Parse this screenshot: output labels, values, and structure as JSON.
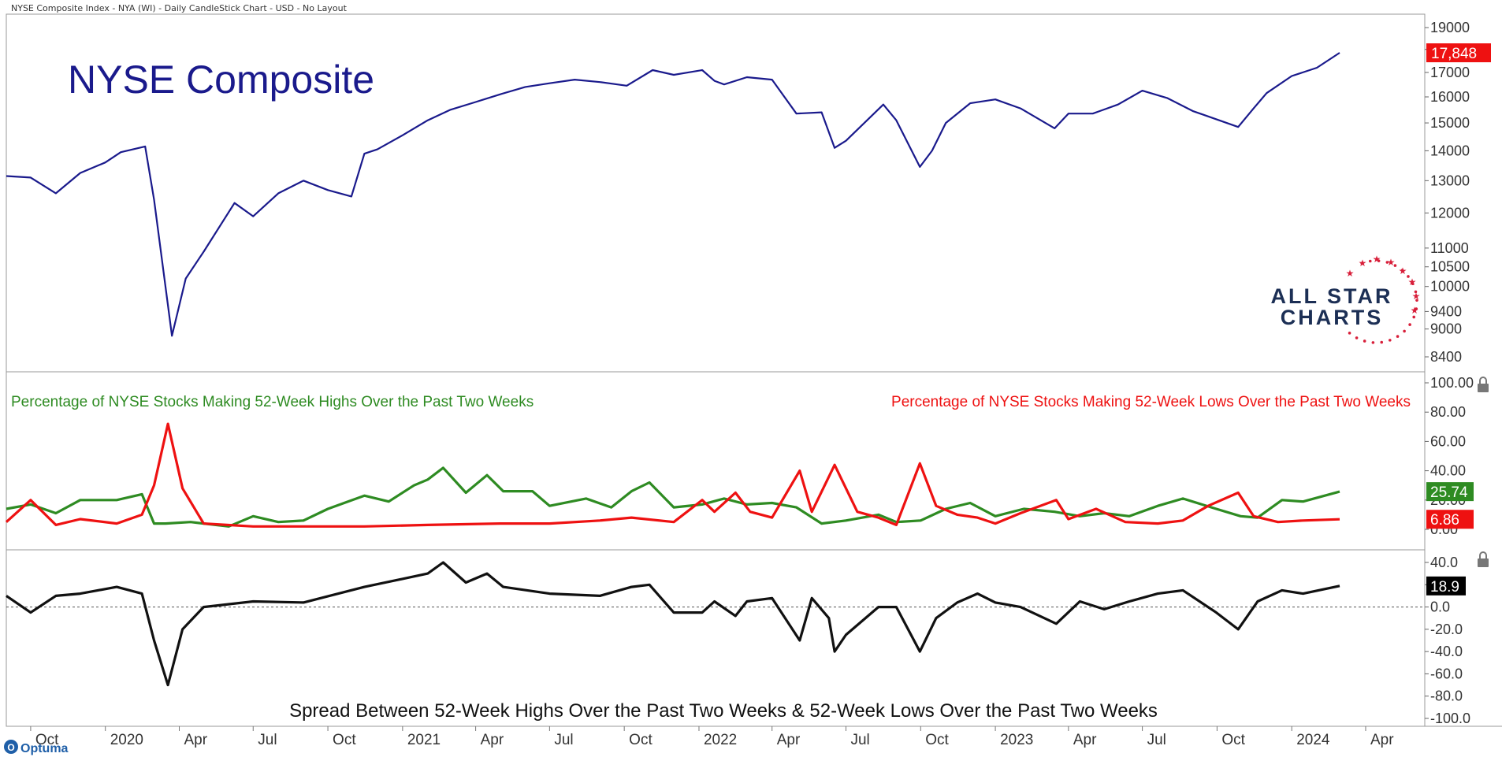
{
  "header": "NYSE Composite Index - NYA (WI) - Daily CandleStick Chart - USD - No Layout",
  "brand": {
    "line1": "ALL STAR",
    "line2": "CHARTS",
    "optuma": "Optuma",
    "optuma_letter": "O"
  },
  "colors": {
    "price": "#1a1a8c",
    "title": "#1a1a8c",
    "highs": "#2e8b22",
    "lows": "#ee1111",
    "spread": "#111111",
    "grid": "#bbbbbb",
    "brand_blue": "#1c2f55",
    "brand_red": "#d81f3a",
    "optuma": "#1f5fa8"
  },
  "chart_data": [
    {
      "type": "line",
      "title": "NYSE Composite",
      "scale": "log",
      "y_ticks": [
        "19000",
        "18000",
        "17000",
        "16000",
        "15000",
        "14000",
        "13000",
        "12000",
        "11000",
        "10500",
        "10000",
        "9400",
        "9000",
        "8400"
      ],
      "ylim": [
        8400,
        19000
      ],
      "last_value_label": "17,848",
      "x": [
        "2019-09-01",
        "2019-10-01",
        "2019-11-01",
        "2019-12-01",
        "2020-01-01",
        "2020-01-20",
        "2020-02-19",
        "2020-03-01",
        "2020-03-23",
        "2020-04-09",
        "2020-05-01",
        "2020-06-08",
        "2020-07-01",
        "2020-08-01",
        "2020-09-01",
        "2020-10-01",
        "2020-10-30",
        "2020-11-15",
        "2020-12-01",
        "2021-01-01",
        "2021-02-01",
        "2021-03-01",
        "2021-04-01",
        "2021-05-01",
        "2021-06-01",
        "2021-07-01",
        "2021-08-01",
        "2021-09-01",
        "2021-10-04",
        "2021-11-05",
        "2021-12-01",
        "2022-01-05",
        "2022-01-20",
        "2022-02-01",
        "2022-03-01",
        "2022-04-01",
        "2022-05-01",
        "2022-06-01",
        "2022-06-17",
        "2022-07-01",
        "2022-08-16",
        "2022-09-01",
        "2022-09-30",
        "2022-10-15",
        "2022-11-01",
        "2022-12-01",
        "2023-01-01",
        "2023-02-01",
        "2023-03-15",
        "2023-04-01",
        "2023-05-01",
        "2023-06-01",
        "2023-07-01",
        "2023-08-01",
        "2023-09-01",
        "2023-10-27",
        "2023-11-15",
        "2023-12-01",
        "2024-01-01",
        "2024-02-01",
        "2024-02-29"
      ],
      "values": [
        13150,
        13100,
        12600,
        13250,
        13600,
        13950,
        14150,
        12400,
        8850,
        10200,
        10900,
        12300,
        11900,
        12600,
        13000,
        12700,
        12500,
        13900,
        14050,
        14550,
        15100,
        15500,
        15800,
        16100,
        16400,
        16550,
        16700,
        16600,
        16450,
        17100,
        16900,
        17100,
        16650,
        16500,
        16800,
        16700,
        15350,
        15400,
        14100,
        14350,
        15700,
        15100,
        13450,
        14000,
        15000,
        15750,
        15900,
        15550,
        14800,
        15350,
        15350,
        15700,
        16250,
        15950,
        15450,
        14850,
        15550,
        16150,
        16850,
        17200,
        17848
      ]
    },
    {
      "type": "line",
      "series": [
        {
          "name": "Percentage of NYSE Stocks Making 52-Week Highs Over the Past Two Weeks",
          "last_value_label": "25.74",
          "x": [
            "2019-09-01",
            "2019-10-01",
            "2019-11-01",
            "2019-12-01",
            "2020-01-15",
            "2020-02-15",
            "2020-03-01",
            "2020-03-15",
            "2020-04-15",
            "2020-06-01",
            "2020-07-01",
            "2020-08-01",
            "2020-09-01",
            "2020-10-01",
            "2020-11-15",
            "2020-12-15",
            "2021-01-15",
            "2021-02-01",
            "2021-02-20",
            "2021-03-20",
            "2021-04-15",
            "2021-05-05",
            "2021-06-10",
            "2021-07-01",
            "2021-08-15",
            "2021-09-15",
            "2021-10-10",
            "2021-11-01",
            "2021-12-01",
            "2022-01-05",
            "2022-02-01",
            "2022-03-01",
            "2022-04-01",
            "2022-05-01",
            "2022-06-01",
            "2022-07-01",
            "2022-08-10",
            "2022-09-01",
            "2022-10-01",
            "2022-11-01",
            "2022-12-01",
            "2023-01-01",
            "2023-02-05",
            "2023-03-15",
            "2023-04-15",
            "2023-05-15",
            "2023-06-15",
            "2023-07-20",
            "2023-08-20",
            "2023-09-30",
            "2023-10-30",
            "2023-11-20",
            "2023-12-20",
            "2024-01-15",
            "2024-02-29"
          ],
          "values": [
            14,
            17,
            11,
            20,
            20,
            24,
            4,
            4,
            5,
            2,
            9,
            5,
            6,
            14,
            23,
            19,
            30,
            34,
            42,
            25,
            37,
            26,
            26,
            16,
            21,
            15,
            26,
            32,
            15,
            17,
            21,
            17,
            18,
            15,
            4,
            6,
            10,
            5,
            6,
            14,
            18,
            9,
            14,
            12,
            9,
            11,
            9,
            16,
            21,
            14,
            9,
            8,
            20,
            19,
            25.74
          ]
        },
        {
          "name": "Percentage of NYSE Stocks Making 52-Week Lows Over the Past Two Weeks",
          "last_value_label": "6.86",
          "x": [
            "2019-09-01",
            "2019-10-01",
            "2019-11-01",
            "2019-12-01",
            "2020-01-15",
            "2020-02-15",
            "2020-03-01",
            "2020-03-18",
            "2020-04-05",
            "2020-05-01",
            "2020-07-01",
            "2020-09-01",
            "2020-11-15",
            "2021-02-01",
            "2021-05-01",
            "2021-07-01",
            "2021-09-01",
            "2021-10-10",
            "2021-12-01",
            "2022-01-05",
            "2022-01-20",
            "2022-02-15",
            "2022-03-05",
            "2022-04-01",
            "2022-05-05",
            "2022-05-20",
            "2022-06-17",
            "2022-07-01",
            "2022-07-15",
            "2022-08-10",
            "2022-09-01",
            "2022-09-30",
            "2022-10-20",
            "2022-11-15",
            "2022-12-10",
            "2023-01-01",
            "2023-02-01",
            "2023-03-17",
            "2023-04-01",
            "2023-05-05",
            "2023-06-10",
            "2023-07-20",
            "2023-08-20",
            "2023-09-20",
            "2023-10-27",
            "2023-11-15",
            "2023-12-15",
            "2024-01-15",
            "2024-02-29"
          ],
          "values": [
            5,
            20,
            3,
            7,
            4,
            10,
            30,
            72,
            28,
            4,
            2,
            2,
            2,
            3,
            4,
            4,
            6,
            8,
            5,
            20,
            12,
            25,
            12,
            8,
            40,
            12,
            44,
            28,
            12,
            8,
            3,
            45,
            16,
            10,
            8,
            4,
            11,
            20,
            7,
            14,
            5,
            4,
            6,
            16,
            25,
            9,
            5,
            6,
            6.86
          ]
        }
      ],
      "y_ticks": [
        "100.00",
        "80.00",
        "60.00",
        "40.00",
        "20.00",
        "0.00"
      ],
      "ylim": [
        0,
        100
      ]
    },
    {
      "type": "line",
      "title": "Spread Between 52-Week Highs Over the Past Two Weeks & 52-Week Lows Over the Past Two Weeks",
      "y_ticks": [
        "40.0",
        "20.0",
        "0.0",
        "-20.0",
        "-40.0",
        "-60.0",
        "-80.0",
        "-100.0"
      ],
      "ylim": [
        -100,
        40
      ],
      "reference_line": 0,
      "last_value_label": "18.9",
      "x": [
        "2019-09-01",
        "2019-10-01",
        "2019-11-01",
        "2019-12-01",
        "2020-01-15",
        "2020-02-15",
        "2020-03-01",
        "2020-03-18",
        "2020-04-05",
        "2020-05-01",
        "2020-07-01",
        "2020-09-01",
        "2020-11-15",
        "2021-02-01",
        "2021-02-20",
        "2021-03-20",
        "2021-04-15",
        "2021-05-05",
        "2021-07-01",
        "2021-09-01",
        "2021-10-10",
        "2021-11-01",
        "2021-12-01",
        "2022-01-05",
        "2022-01-20",
        "2022-02-15",
        "2022-03-01",
        "2022-04-01",
        "2022-05-05",
        "2022-05-20",
        "2022-06-10",
        "2022-06-17",
        "2022-07-01",
        "2022-08-10",
        "2022-09-01",
        "2022-09-30",
        "2022-10-20",
        "2022-11-15",
        "2022-12-10",
        "2023-01-01",
        "2023-02-01",
        "2023-03-17",
        "2023-04-15",
        "2023-05-15",
        "2023-06-15",
        "2023-07-20",
        "2023-08-20",
        "2023-09-30",
        "2023-10-27",
        "2023-11-20",
        "2023-12-20",
        "2024-01-15",
        "2024-02-29"
      ],
      "values": [
        10,
        -5,
        10,
        12,
        18,
        12,
        -30,
        -70,
        -20,
        0,
        5,
        4,
        18,
        30,
        40,
        22,
        30,
        18,
        12,
        10,
        18,
        20,
        -5,
        -5,
        5,
        -8,
        5,
        8,
        -30,
        8,
        -10,
        -40,
        -25,
        0,
        0,
        -40,
        -10,
        4,
        12,
        4,
        0,
        -15,
        5,
        -2,
        5,
        12,
        15,
        -5,
        -20,
        5,
        15,
        12,
        18.9
      ]
    }
  ],
  "x_axis": {
    "labels": [
      {
        "d": "2019-10-01",
        "t": "Oct"
      },
      {
        "d": "2020-01-01",
        "t": "2020"
      },
      {
        "d": "2020-04-01",
        "t": "Apr"
      },
      {
        "d": "2020-07-01",
        "t": "Jul"
      },
      {
        "d": "2020-10-01",
        "t": "Oct"
      },
      {
        "d": "2021-01-01",
        "t": "2021"
      },
      {
        "d": "2021-04-01",
        "t": "Apr"
      },
      {
        "d": "2021-07-01",
        "t": "Jul"
      },
      {
        "d": "2021-10-01",
        "t": "Oct"
      },
      {
        "d": "2022-01-01",
        "t": "2022"
      },
      {
        "d": "2022-04-01",
        "t": "Apr"
      },
      {
        "d": "2022-07-01",
        "t": "Jul"
      },
      {
        "d": "2022-10-01",
        "t": "Oct"
      },
      {
        "d": "2023-01-01",
        "t": "2023"
      },
      {
        "d": "2023-04-01",
        "t": "Apr"
      },
      {
        "d": "2023-07-01",
        "t": "Jul"
      },
      {
        "d": "2023-10-01",
        "t": "Oct"
      },
      {
        "d": "2024-01-01",
        "t": "2024"
      },
      {
        "d": "2024-04-01",
        "t": "Apr"
      }
    ]
  }
}
